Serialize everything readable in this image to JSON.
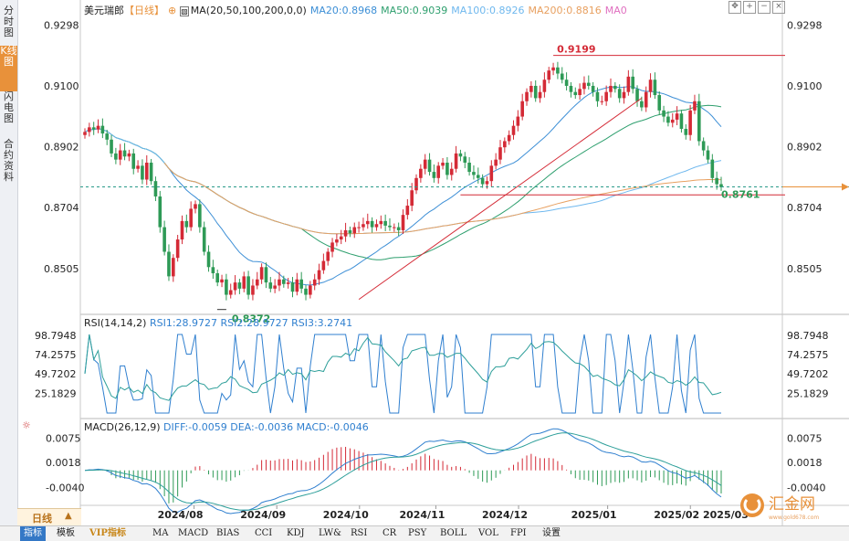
{
  "sidebar": {
    "tabs": [
      {
        "label": "分时图",
        "active": false
      },
      {
        "label": "K线图",
        "active": true
      },
      {
        "label": "闪电图",
        "active": false
      },
      {
        "label": "合约资料",
        "active": false
      }
    ]
  },
  "main_chart": {
    "symbol": "美元瑞郎",
    "period": "【日线】",
    "ma_label": "MA(20,50,100,200,0,0)",
    "ma_values": [
      {
        "label": "MA20:0.8968",
        "color": "#3d8fd6"
      },
      {
        "label": "MA50:0.9039",
        "color": "#2e9f6e"
      },
      {
        "label": "MA100:0.8926",
        "color": "#6fb8ee"
      },
      {
        "label": "MA200:0.8816",
        "color": "#e8a060"
      },
      {
        "label": "MA0",
        "color": "#e070c0"
      }
    ],
    "price_axis_left": [
      "0.9298",
      "0.9100",
      "0.8902",
      "0.8704",
      "0.8505"
    ],
    "price_axis_right": [
      "0.9298",
      "0.9100",
      "0.8902",
      "0.8704",
      "0.8505"
    ],
    "high_label": "0.9199",
    "low_label": "0.8372",
    "last_label": "0.8761"
  },
  "rsi": {
    "title": "RSI(14,14,2)",
    "values": [
      {
        "label": "RSI1:28.9727",
        "color": "#2f7fcf"
      },
      {
        "label": "RSI2:28.9727",
        "color": "#2f7fcf"
      },
      {
        "label": "RSI3:3.2741",
        "color": "#2f7fcf"
      }
    ],
    "axis": [
      "98.7948",
      "74.2575",
      "49.7202",
      "25.1829"
    ]
  },
  "macd": {
    "title": "MACD(26,12,9)",
    "values": [
      {
        "label": "DIFF:-0.0059",
        "color": "#2f7fcf"
      },
      {
        "label": "DEA:-0.0036",
        "color": "#2f7fcf"
      },
      {
        "label": "MACD:-0.0046",
        "color": "#2f7fcf"
      }
    ],
    "axis": [
      "0.0075",
      "0.0018",
      "-0.0040"
    ]
  },
  "x_axis": [
    "2024/08",
    "2024/09",
    "2024/10",
    "2024/11",
    "2024/12",
    "2025/01",
    "2025/02",
    "2025/03"
  ],
  "period_button": "日线",
  "toolbar": [
    "指标",
    "模板",
    "VIP指标",
    "MA",
    "MACD",
    "BIAS",
    "CCI",
    "KDJ",
    "LW&",
    "RSI",
    "CR",
    "PSY",
    "BOLL",
    "VOL",
    "FPI",
    "设置"
  ],
  "watermark": {
    "name": "汇金网",
    "url": "www.gold678.com"
  },
  "chart_data": {
    "type": "candlestick",
    "title": "美元瑞郎【日线】",
    "x_ticks": [
      "2024/08",
      "2024/09",
      "2024/10",
      "2024/11",
      "2024/12",
      "2025/01",
      "2025/02",
      "2025/03"
    ],
    "y_range": [
      0.838,
      0.932
    ],
    "y_ticks": [
      0.9298,
      0.91,
      0.8902,
      0.8704,
      0.8505
    ],
    "annotated_high": 0.9199,
    "annotated_low": 0.8372,
    "annotated_last": 0.8761,
    "closes": [
      0.895,
      0.8965,
      0.8958,
      0.897,
      0.8945,
      0.8925,
      0.888,
      0.886,
      0.889,
      0.887,
      0.888,
      0.883,
      0.884,
      0.8795,
      0.885,
      0.879,
      0.874,
      0.864,
      0.856,
      0.848,
      0.854,
      0.86,
      0.866,
      0.864,
      0.87,
      0.8715,
      0.864,
      0.856,
      0.851,
      0.849,
      0.846,
      0.847,
      0.842,
      0.8435,
      0.846,
      0.844,
      0.848,
      0.842,
      0.845,
      0.847,
      0.851,
      0.846,
      0.844,
      0.845,
      0.847,
      0.8455,
      0.846,
      0.843,
      0.847,
      0.844,
      0.842,
      0.845,
      0.847,
      0.85,
      0.853,
      0.856,
      0.859,
      0.86,
      0.861,
      0.863,
      0.862,
      0.864,
      0.864,
      0.865,
      0.866,
      0.864,
      0.865,
      0.866,
      0.8645,
      0.864,
      0.864,
      0.863,
      0.868,
      0.871,
      0.876,
      0.88,
      0.883,
      0.886,
      0.882,
      0.88,
      0.884,
      0.885,
      0.881,
      0.883,
      0.888,
      0.887,
      0.885,
      0.882,
      0.881,
      0.88,
      0.878,
      0.879,
      0.884,
      0.886,
      0.89,
      0.892,
      0.894,
      0.897,
      0.9,
      0.905,
      0.908,
      0.91,
      0.906,
      0.908,
      0.912,
      0.915,
      0.916,
      0.914,
      0.912,
      0.91,
      0.908,
      0.907,
      0.909,
      0.911,
      0.91,
      0.908,
      0.905,
      0.905,
      0.908,
      0.91,
      0.909,
      0.906,
      0.908,
      0.913,
      0.909,
      0.905,
      0.903,
      0.908,
      0.912,
      0.907,
      0.902,
      0.9,
      0.898,
      0.899,
      0.901,
      0.896,
      0.894,
      0.902,
      0.905,
      0.892,
      0.889,
      0.886,
      0.88,
      0.878,
      0.877
    ]
  }
}
